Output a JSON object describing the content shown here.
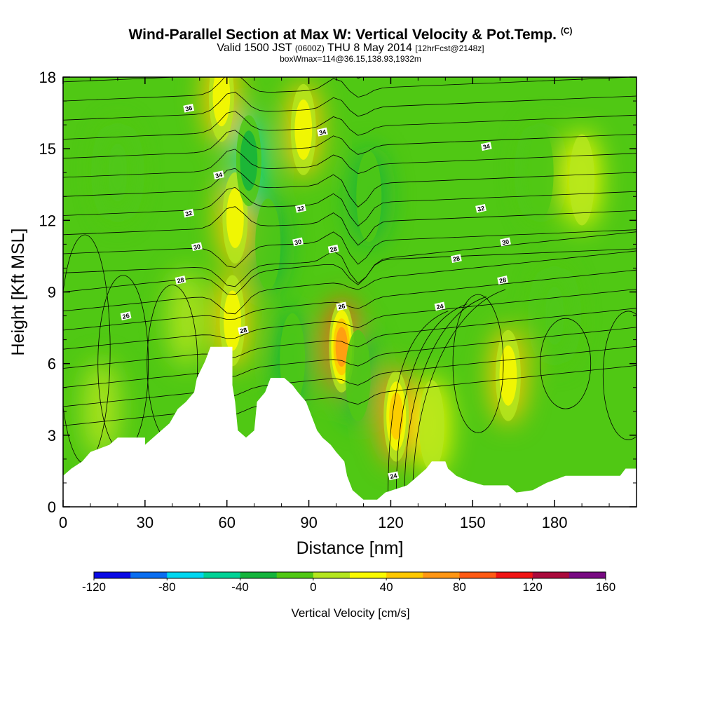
{
  "header": {
    "title": "Wind-Parallel Section at Max W: Vertical Velocity & Pot.Temp.",
    "title_mark": "(C)",
    "valid_prefix": "Valid 1500 JST",
    "valid_utc": "(0600Z)",
    "valid_date": "THU 8 May 2014",
    "forecast_tag": "[12hrFcst@2148z]",
    "box_info": "boxWmax=114@36.15,138.93,1932m"
  },
  "chart_data": {
    "type": "heatmap",
    "title": "Wind-Parallel Section at Max W: Vertical Velocity & Pot.Temp.",
    "xlabel": "Distance [nm]",
    "ylabel": "Height [Kft MSL]",
    "xlim": [
      0,
      210
    ],
    "ylim": [
      0,
      18
    ],
    "x_ticks": [
      0,
      30,
      60,
      90,
      120,
      150,
      180
    ],
    "y_ticks": [
      0,
      3,
      6,
      9,
      12,
      15,
      18
    ],
    "colorbar": {
      "label": "Vertical Velocity [cm/s]",
      "boundaries": [
        -120,
        -100,
        -80,
        -60,
        -40,
        -20,
        0,
        20,
        40,
        60,
        80,
        100,
        120,
        140,
        160
      ],
      "colors": [
        "#0a0ae6",
        "#0a6ef0",
        "#00d7f0",
        "#00d296",
        "#14b43c",
        "#50c814",
        "#b4e61e",
        "#fafa00",
        "#ffc800",
        "#ff9614",
        "#ff5a14",
        "#f01414",
        "#aa0a3c",
        "#780a82"
      ],
      "tick_values": [
        -120,
        -80,
        -40,
        0,
        40,
        80,
        120,
        160
      ],
      "tick_labels": [
        "-120",
        "-80",
        "-40",
        "0",
        "40",
        "80",
        "120",
        "160"
      ]
    },
    "terrain_kft": [
      [
        0,
        1.3
      ],
      [
        3,
        1.6
      ],
      [
        7,
        1.9
      ],
      [
        10,
        2.3
      ],
      [
        17,
        2.6
      ],
      [
        20,
        2.9
      ],
      [
        30,
        2.9
      ],
      [
        30,
        2.6
      ],
      [
        33,
        2.9
      ],
      [
        36,
        3.2
      ],
      [
        39,
        3.5
      ],
      [
        42,
        4.1
      ],
      [
        45,
        4.4
      ],
      [
        48,
        4.8
      ],
      [
        49,
        5.4
      ],
      [
        52,
        6.1
      ],
      [
        54,
        6.7
      ],
      [
        62,
        6.7
      ],
      [
        62,
        5.1
      ],
      [
        63,
        4.4
      ],
      [
        64,
        3.2
      ],
      [
        67,
        2.9
      ],
      [
        70,
        3.2
      ],
      [
        71,
        4.4
      ],
      [
        74,
        4.8
      ],
      [
        76,
        5.4
      ],
      [
        81,
        5.4
      ],
      [
        84,
        5.1
      ],
      [
        86,
        4.8
      ],
      [
        89,
        4.4
      ],
      [
        91,
        3.8
      ],
      [
        93,
        3.2
      ],
      [
        95,
        2.9
      ],
      [
        98,
        2.6
      ],
      [
        100,
        2.3
      ],
      [
        103,
        1.9
      ],
      [
        104,
        1.3
      ],
      [
        106,
        0.7
      ],
      [
        110,
        0.3
      ],
      [
        115,
        0.3
      ],
      [
        118,
        0.6
      ],
      [
        126,
        0.9
      ],
      [
        130,
        1.3
      ],
      [
        133,
        1.6
      ],
      [
        135,
        1.9
      ],
      [
        140,
        1.9
      ],
      [
        141,
        1.6
      ],
      [
        144,
        1.3
      ],
      [
        148,
        1.1
      ],
      [
        154,
        0.9
      ],
      [
        163,
        0.9
      ],
      [
        166,
        0.6
      ],
      [
        172,
        0.7
      ],
      [
        177,
        1.0
      ],
      [
        184,
        1.3
      ],
      [
        204,
        1.3
      ],
      [
        206,
        1.6
      ],
      [
        210,
        1.6
      ]
    ],
    "velocity_features": [
      {
        "x": 14,
        "y": 4.1,
        "value": 10
      },
      {
        "x": 20,
        "y": 14.0,
        "value": -10
      },
      {
        "x": 45,
        "y": 7.9,
        "value": 10
      },
      {
        "x": 58,
        "y": 17.2,
        "value": 40
      },
      {
        "x": 63,
        "y": 12.1,
        "value": 55
      },
      {
        "x": 62,
        "y": 7.8,
        "value": 45
      },
      {
        "x": 68,
        "y": 14.5,
        "value": -50
      },
      {
        "x": 75,
        "y": 11.0,
        "value": -25
      },
      {
        "x": 88,
        "y": 15.8,
        "value": 40
      },
      {
        "x": 84,
        "y": 6.2,
        "value": -30
      },
      {
        "x": 102,
        "y": 6.7,
        "value": 95
      },
      {
        "x": 112,
        "y": 13.0,
        "value": -30
      },
      {
        "x": 108,
        "y": 5.5,
        "value": -30
      },
      {
        "x": 122,
        "y": 3.8,
        "value": 60
      },
      {
        "x": 135,
        "y": 3.4,
        "value": 30
      },
      {
        "x": 163,
        "y": 5.5,
        "value": 40
      },
      {
        "x": 175,
        "y": 14.0,
        "value": -20
      },
      {
        "x": 190,
        "y": 13.7,
        "value": 30
      },
      {
        "x": 180,
        "y": 8.0,
        "value": -10
      }
    ],
    "theta_contour_labels": [
      {
        "x": 46,
        "y": 16.7,
        "text": "36"
      },
      {
        "x": 57,
        "y": 13.9,
        "text": "34"
      },
      {
        "x": 95,
        "y": 15.7,
        "text": "34"
      },
      {
        "x": 155,
        "y": 15.1,
        "text": "34"
      },
      {
        "x": 46,
        "y": 12.3,
        "text": "32"
      },
      {
        "x": 87,
        "y": 12.5,
        "text": "32"
      },
      {
        "x": 153,
        "y": 12.5,
        "text": "32"
      },
      {
        "x": 49,
        "y": 10.9,
        "text": "30"
      },
      {
        "x": 86,
        "y": 11.1,
        "text": "30"
      },
      {
        "x": 162,
        "y": 11.1,
        "text": "30"
      },
      {
        "x": 43,
        "y": 9.5,
        "text": "28"
      },
      {
        "x": 99,
        "y": 10.8,
        "text": "28"
      },
      {
        "x": 144,
        "y": 10.4,
        "text": "28"
      },
      {
        "x": 161,
        "y": 9.5,
        "text": "28"
      },
      {
        "x": 23,
        "y": 8.0,
        "text": "26"
      },
      {
        "x": 102,
        "y": 8.4,
        "text": "26"
      },
      {
        "x": 138,
        "y": 8.4,
        "text": "24"
      },
      {
        "x": 66,
        "y": 7.4,
        "text": "28"
      },
      {
        "x": 121,
        "y": 1.3,
        "text": "24"
      }
    ]
  }
}
